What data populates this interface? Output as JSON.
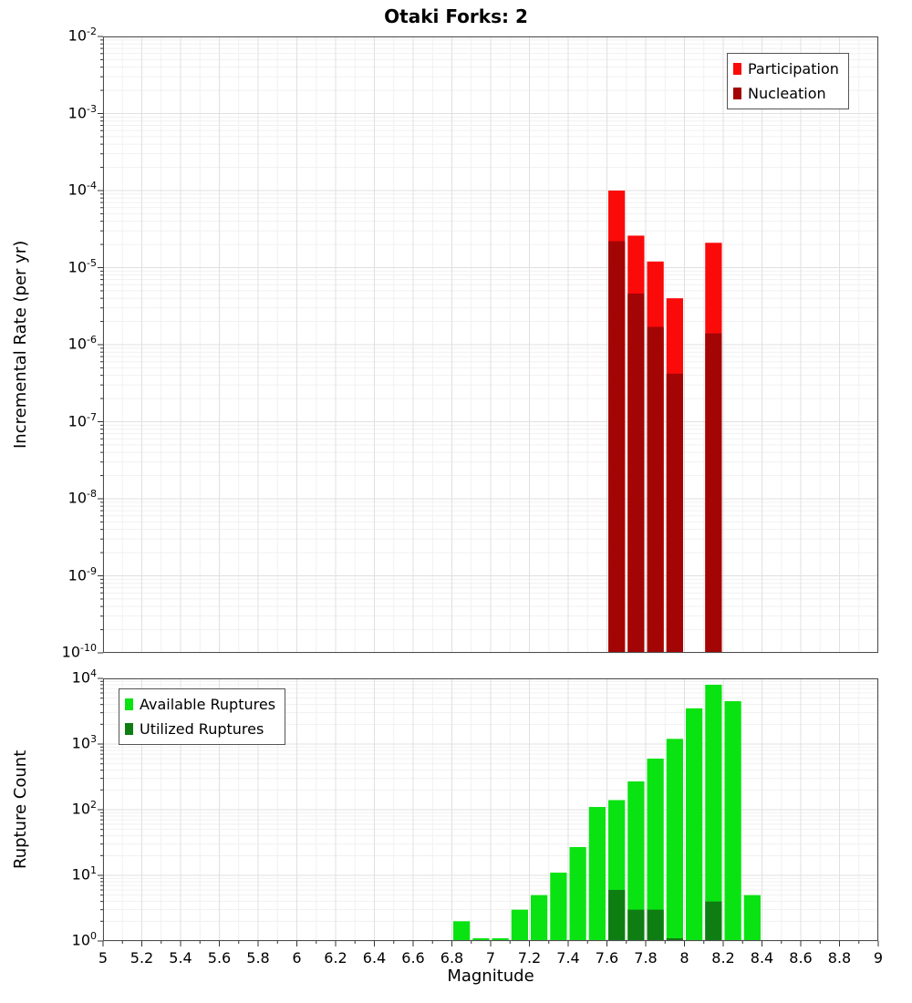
{
  "page": {
    "title": "Otaki Forks: 2",
    "xlabel": "Magnitude"
  },
  "chart_data": [
    {
      "type": "bar",
      "name": "incremental-rate",
      "title": "Otaki Forks: 2",
      "xlabel": "",
      "ylabel": "Incremental Rate (per yr)",
      "x_range": [
        5,
        9
      ],
      "x_tick_step": 0.2,
      "x_minor_step": 0.1,
      "x_tick_labels": [
        "5",
        "5.2",
        "5.4",
        "5.6",
        "5.8",
        "6",
        "6.2",
        "6.4",
        "6.6",
        "6.8",
        "7",
        "7.2",
        "7.4",
        "7.6",
        "7.8",
        "8",
        "8.2",
        "8.4",
        "8.6",
        "8.8",
        "9"
      ],
      "y_scale": "log",
      "y_exp_range": [
        -10,
        -2
      ],
      "y_tick_exponents": [
        -10,
        -9,
        -8,
        -7,
        -6,
        -5,
        -4,
        -3,
        -2
      ],
      "bin_width": 0.1,
      "grid": true,
      "legend_position": "top-right",
      "series": [
        {
          "name": "Participation",
          "color": "#fb0a0a",
          "x": [
            7.6,
            7.7,
            7.8,
            7.9,
            8.1
          ],
          "values": [
            0.0001,
            2.6e-05,
            1.2e-05,
            4e-06,
            2.1e-05
          ]
        },
        {
          "name": "Nucleation",
          "color": "#a30404",
          "x": [
            7.6,
            7.7,
            7.8,
            7.9,
            8.1
          ],
          "values": [
            2.2e-05,
            4.6e-06,
            1.7e-06,
            4.2e-07,
            1.4e-06
          ]
        }
      ]
    },
    {
      "type": "bar",
      "name": "rupture-count",
      "title": "",
      "xlabel": "Magnitude",
      "ylabel": "Rupture Count",
      "x_range": [
        5,
        9
      ],
      "x_tick_step": 0.2,
      "x_minor_step": 0.1,
      "x_tick_labels": [
        "5",
        "5.2",
        "5.4",
        "5.6",
        "5.8",
        "6",
        "6.2",
        "6.4",
        "6.6",
        "6.8",
        "7",
        "7.2",
        "7.4",
        "7.6",
        "7.8",
        "8",
        "8.2",
        "8.4",
        "8.6",
        "8.8",
        "9"
      ],
      "y_scale": "log",
      "y_exp_range": [
        0,
        4
      ],
      "y_tick_exponents": [
        0,
        1,
        2,
        3,
        4
      ],
      "bin_width": 0.1,
      "grid": true,
      "legend_position": "top-left",
      "series": [
        {
          "name": "Available Ruptures",
          "color": "#0ae312",
          "x": [
            6.8,
            6.9,
            7.0,
            7.1,
            7.2,
            7.3,
            7.4,
            7.5,
            7.6,
            7.7,
            7.8,
            7.9,
            8.0,
            8.1,
            8.2,
            8.3
          ],
          "values": [
            2,
            1,
            1,
            3,
            5,
            11,
            27,
            110,
            140,
            270,
            600,
            1200,
            3500,
            8000,
            4500,
            5
          ]
        },
        {
          "name": "Utilized Ruptures",
          "color": "#0e7d12",
          "x": [
            7.6,
            7.7,
            7.8,
            7.9,
            8.1
          ],
          "values": [
            6,
            3,
            3,
            1,
            4
          ]
        }
      ]
    }
  ]
}
